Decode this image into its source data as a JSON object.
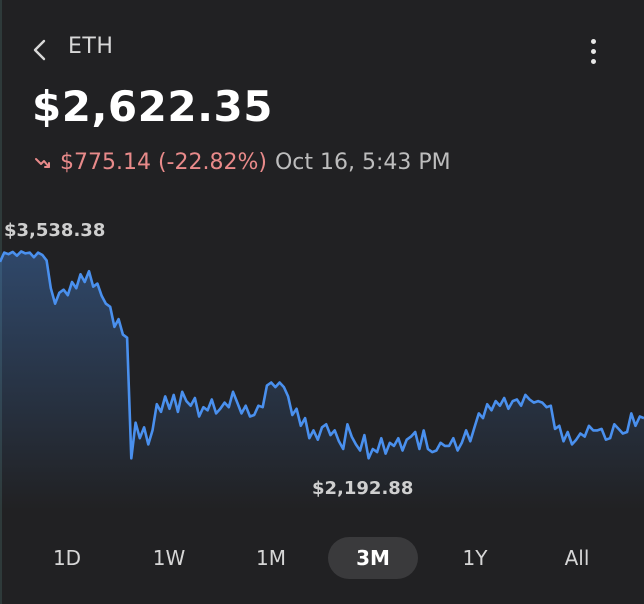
{
  "header": {
    "symbol": "ETH",
    "back_icon": "chevron-left-icon",
    "more_icon": "more-vertical-icon"
  },
  "price": "$2,622.35",
  "change": {
    "amount_pct": "$775.14 (-22.82%)",
    "timestamp": "Oct 16, 5:43 PM",
    "direction": "down",
    "color": "#e88a8a"
  },
  "chart_data": {
    "type": "line",
    "high_label": "$3,538.38",
    "low_label": "$2,192.88",
    "line_color": "#4a90ee",
    "values": [
      3470,
      3530,
      3520,
      3535,
      3510,
      3538,
      3525,
      3530,
      3500,
      3530,
      3515,
      3480,
      3300,
      3200,
      3270,
      3290,
      3255,
      3340,
      3300,
      3390,
      3340,
      3410,
      3310,
      3330,
      3250,
      3200,
      3180,
      3050,
      3100,
      3000,
      2980,
      2200,
      2430,
      2330,
      2400,
      2290,
      2380,
      2550,
      2500,
      2600,
      2520,
      2610,
      2500,
      2630,
      2570,
      2540,
      2590,
      2470,
      2530,
      2510,
      2580,
      2490,
      2520,
      2560,
      2530,
      2630,
      2560,
      2490,
      2540,
      2470,
      2480,
      2540,
      2530,
      2670,
      2690,
      2660,
      2690,
      2660,
      2600,
      2480,
      2520,
      2410,
      2460,
      2330,
      2380,
      2320,
      2400,
      2420,
      2350,
      2380,
      2310,
      2260,
      2420,
      2340,
      2290,
      2250,
      2350,
      2200,
      2260,
      2240,
      2330,
      2230,
      2300,
      2280,
      2330,
      2250,
      2320,
      2340,
      2370,
      2260,
      2380,
      2260,
      2240,
      2250,
      2300,
      2280,
      2280,
      2330,
      2250,
      2300,
      2380,
      2310,
      2400,
      2490,
      2460,
      2550,
      2510,
      2570,
      2540,
      2590,
      2520,
      2570,
      2580,
      2540,
      2610,
      2580,
      2560,
      2570,
      2560,
      2530,
      2540,
      2390,
      2410,
      2310,
      2370,
      2290,
      2320,
      2360,
      2340,
      2410,
      2380,
      2380,
      2390,
      2320,
      2330,
      2420,
      2390,
      2360,
      2370,
      2490,
      2410,
      2470,
      2460
    ],
    "ylim": [
      2150,
      3560
    ]
  },
  "ranges": [
    "1D",
    "1W",
    "1M",
    "3M",
    "1Y",
    "All"
  ],
  "active_range": "3M"
}
